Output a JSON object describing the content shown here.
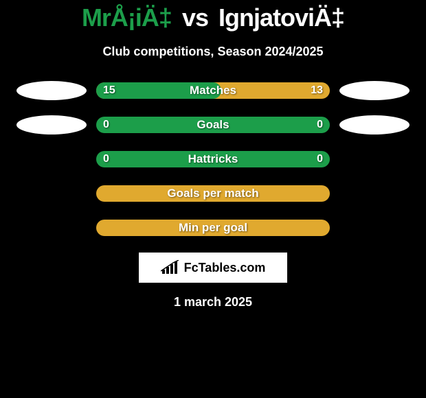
{
  "header": {
    "player1": "MrÅ¡iÄ‡",
    "player2": "IgnjatoviÄ‡",
    "vs": "vs",
    "subtitle": "Club competitions, Season 2024/2025"
  },
  "colors": {
    "accent_green": "#1c9e4a",
    "accent_yellow": "#e0a92f",
    "white": "#ffffff",
    "black": "#000000"
  },
  "stats": [
    {
      "label": "Matches",
      "left_value": "15",
      "right_value": "13",
      "bar_bg": "#e0a92f",
      "left_fill_pct": 53.5,
      "left_fill_color": "#1c9e4a",
      "show_left_ellipse": true,
      "show_right_ellipse": true
    },
    {
      "label": "Goals",
      "left_value": "0",
      "right_value": "0",
      "bar_bg": "#1c9e4a",
      "left_fill_pct": 0,
      "left_fill_color": "#1c9e4a",
      "show_left_ellipse": true,
      "show_right_ellipse": true
    },
    {
      "label": "Hattricks",
      "left_value": "0",
      "right_value": "0",
      "bar_bg": "#1c9e4a",
      "left_fill_pct": 0,
      "left_fill_color": "#1c9e4a",
      "show_left_ellipse": false,
      "show_right_ellipse": false
    },
    {
      "label": "Goals per match",
      "left_value": "",
      "right_value": "",
      "bar_bg": "#e0a92f",
      "left_fill_pct": 0,
      "left_fill_color": "#1c9e4a",
      "show_left_ellipse": false,
      "show_right_ellipse": false
    },
    {
      "label": "Min per goal",
      "left_value": "",
      "right_value": "",
      "bar_bg": "#e0a92f",
      "left_fill_pct": 0,
      "left_fill_color": "#1c9e4a",
      "show_left_ellipse": false,
      "show_right_ellipse": false
    }
  ],
  "brand": {
    "text": "FcTables.com"
  },
  "date": "1 march 2025"
}
